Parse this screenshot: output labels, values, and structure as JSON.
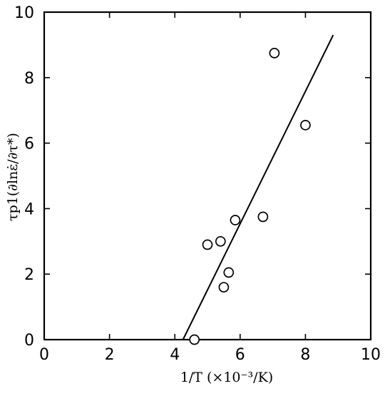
{
  "chart_data": {
    "type": "scatter",
    "title": "",
    "xlabel": "1/T  (×10⁻³/K)",
    "ylabel": "τp1(∂lnε̇/∂τ*)",
    "xlim": [
      0,
      10
    ],
    "ylim": [
      0,
      10
    ],
    "x_ticks": [
      "0",
      "2",
      "4",
      "6",
      "8",
      "10"
    ],
    "y_ticks": [
      "0",
      "2",
      "4",
      "6",
      "8",
      "10"
    ],
    "grid": false,
    "legend": "none",
    "points": [
      {
        "x": 4.6,
        "y": 0.0
      },
      {
        "x": 5.0,
        "y": 2.9
      },
      {
        "x": 5.4,
        "y": 3.0
      },
      {
        "x": 5.5,
        "y": 1.6
      },
      {
        "x": 5.65,
        "y": 2.05
      },
      {
        "x": 5.85,
        "y": 3.65
      },
      {
        "x": 6.7,
        "y": 3.75
      },
      {
        "x": 7.05,
        "y": 8.75
      },
      {
        "x": 8.0,
        "y": 6.55
      }
    ],
    "fit_line": {
      "x": [
        4.25,
        8.85
      ],
      "y": [
        0.0,
        9.3
      ]
    }
  }
}
